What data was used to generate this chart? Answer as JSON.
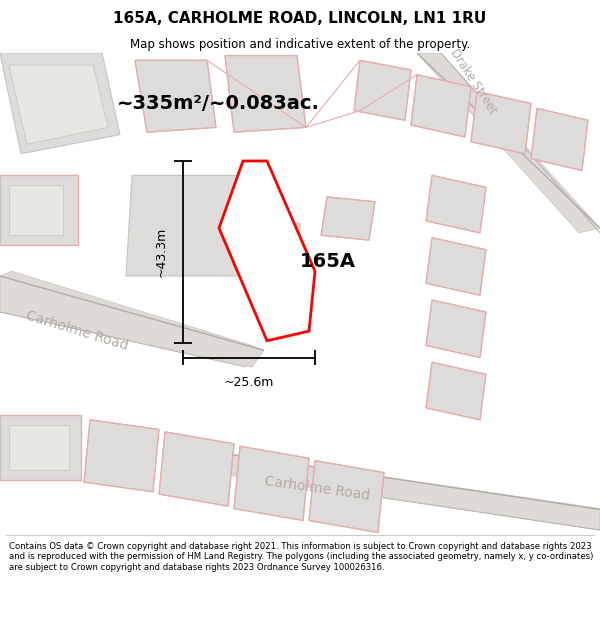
{
  "title_line1": "165A, CARHOLME ROAD, LINCOLN, LN1 1RU",
  "title_line2": "Map shows position and indicative extent of the property.",
  "area_label": "~335m²/~0.083ac.",
  "plot_label": "165A",
  "dim_height": "~43.3m",
  "dim_width": "~25.6m",
  "road_label1": "Carholme Road",
  "road_label2": "Carholme Road",
  "drake_street": "Drake Street",
  "copyright_text": "Contains OS data © Crown copyright and database right 2021. This information is subject to Crown copyright and database rights 2023 and is reproduced with the permission of HM Land Registry. The polygons (including the associated geometry, namely x, y co-ordinates) are subject to Crown copyright and database rights 2023 Ordnance Survey 100026316.",
  "map_bg": "#edecea",
  "building_fill": "#dedcda",
  "building_fill2": "#e8e7e4",
  "road_fill": "#dedad6",
  "pink": "#e8aaaa",
  "dark_gray": "#b0aca8",
  "road_edge": "#c8c4bf",
  "title_fs": 11,
  "subtitle_fs": 8.5,
  "area_fs": 14,
  "plot_fs": 14,
  "road_fs": 10,
  "dim_fs": 9
}
